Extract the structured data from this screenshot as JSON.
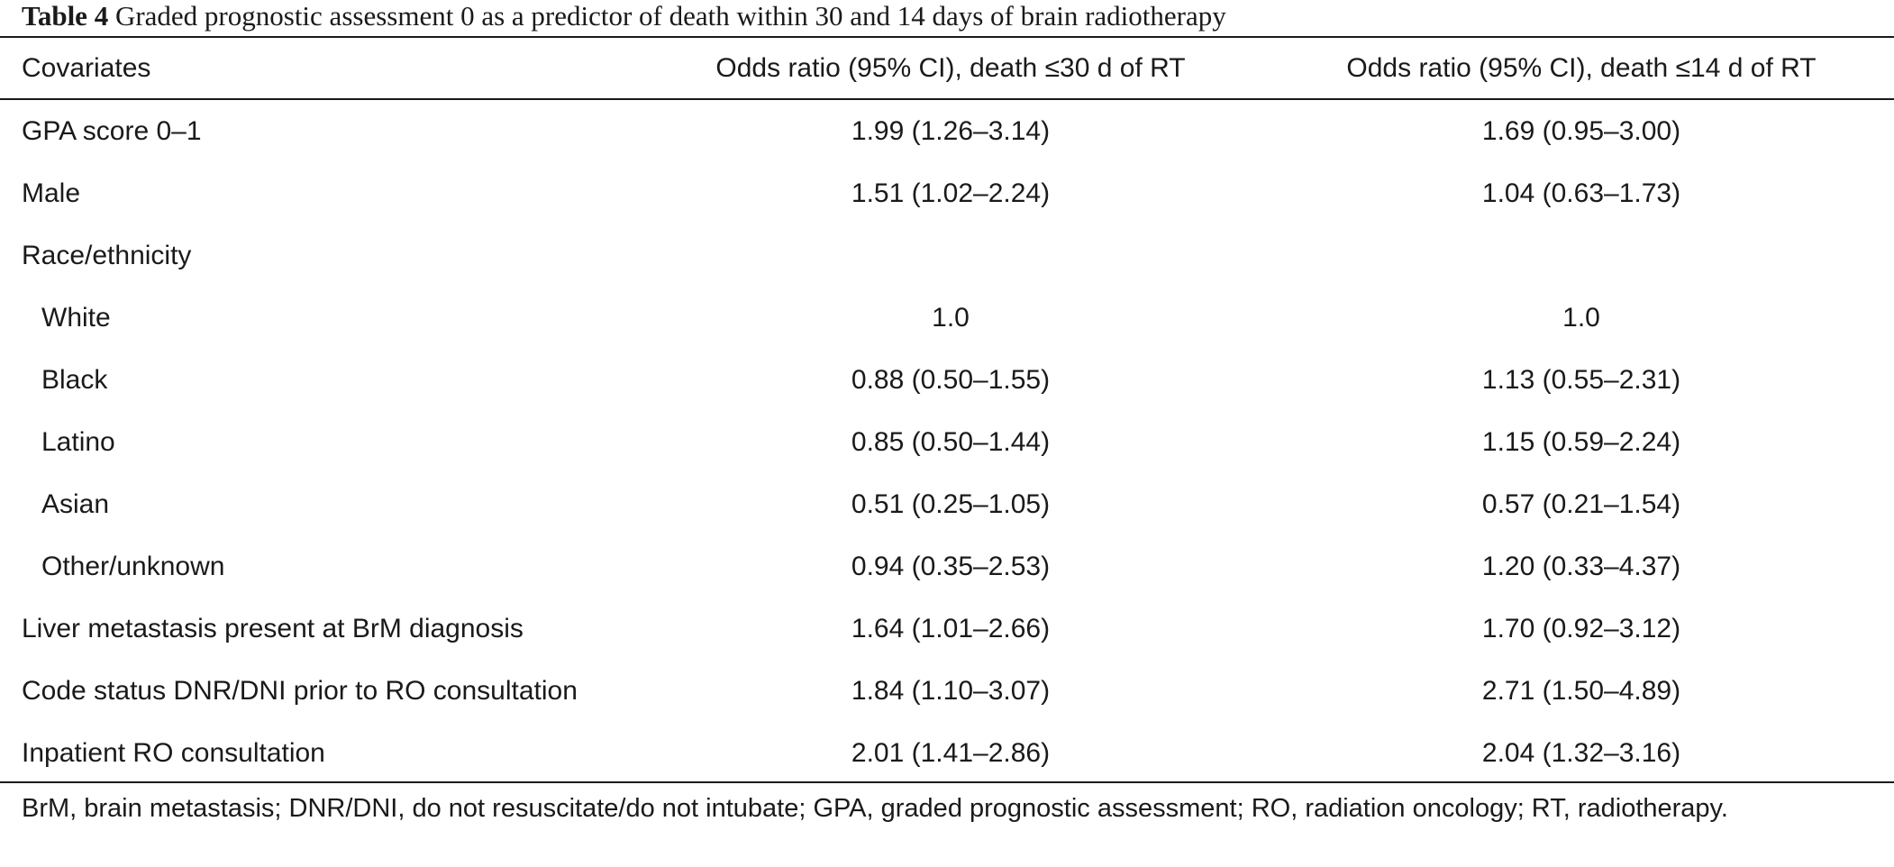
{
  "caption": {
    "label": "Table 4",
    "text": "Graded prognostic assessment 0 as a predictor of death within 30 and 14 days of brain radiotherapy"
  },
  "table": {
    "headers": [
      "Covariates",
      "Odds ratio (95% CI), death ≤30 d of RT",
      "Odds ratio (95% CI), death ≤14 d of RT"
    ],
    "rows": [
      {
        "covariate": "GPA score 0–1",
        "or30": "1.99 (1.26–3.14)",
        "or14": "1.69 (0.95–3.00)"
      },
      {
        "covariate": "Male",
        "or30": "1.51 (1.02–2.24)",
        "or14": "1.04 (0.63–1.73)"
      },
      {
        "covariate": "Race/ethnicity",
        "or30": "",
        "or14": ""
      },
      {
        "covariate": "White",
        "or30": "1.0",
        "or14": "1.0"
      },
      {
        "covariate": "Black",
        "or30": "0.88 (0.50–1.55)",
        "or14": "1.13 (0.55–2.31)"
      },
      {
        "covariate": "Latino",
        "or30": "0.85 (0.50–1.44)",
        "or14": "1.15 (0.59–2.24)"
      },
      {
        "covariate": "Asian",
        "or30": "0.51 (0.25–1.05)",
        "or14": "0.57 (0.21–1.54)"
      },
      {
        "covariate": "Other/unknown",
        "or30": "0.94 (0.35–2.53)",
        "or14": "1.20 (0.33–4.37)"
      },
      {
        "covariate": "Liver metastasis present at BrM diagnosis",
        "or30": "1.64 (1.01–2.66)",
        "or14": "1.70 (0.92–3.12)"
      },
      {
        "covariate": "Code status DNR/DNI prior to RO consultation",
        "or30": "1.84 (1.10–3.07)",
        "or14": "2.71 (1.50–4.89)"
      },
      {
        "covariate": "Inpatient RO consultation",
        "or30": "2.01 (1.41–2.86)",
        "or14": "2.04 (1.32–3.16)"
      }
    ]
  },
  "footnote": "BrM, brain metastasis; DNR/DNI, do not resuscitate/do not intubate; GPA, graded prognostic assessment; RO, radiation oncology; RT, radiotherapy."
}
